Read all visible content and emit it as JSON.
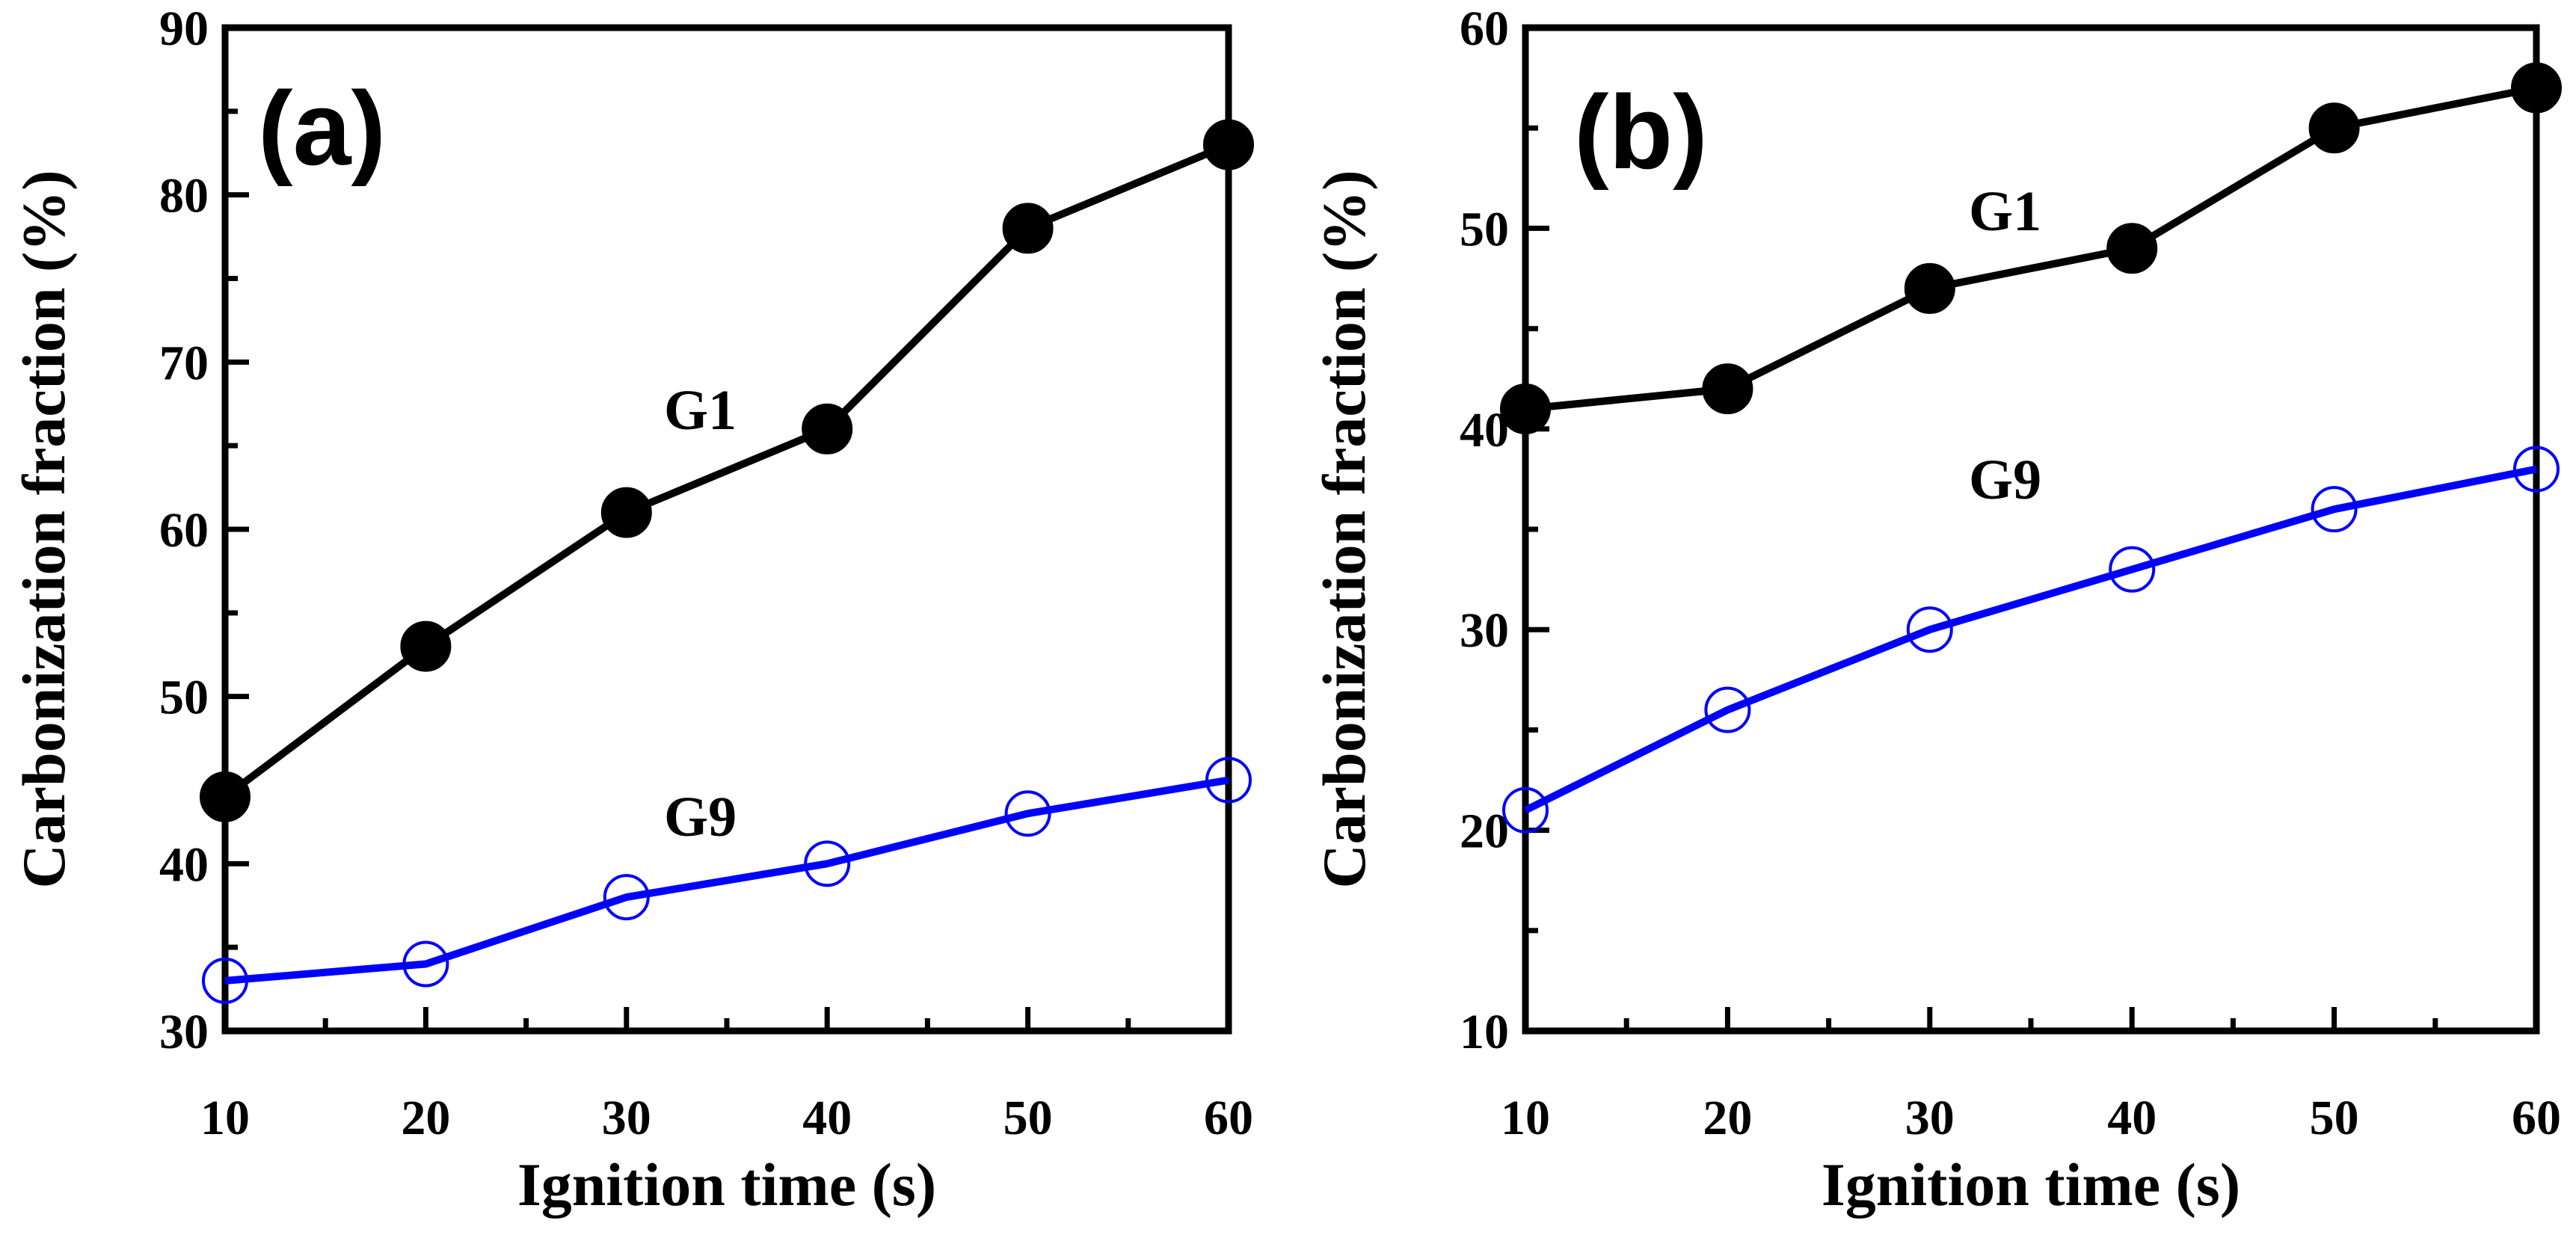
{
  "chart_data": [
    {
      "type": "line",
      "panel_label": "(a)",
      "xlabel": "Ignition time (s)",
      "ylabel": "Carbonization fraction (%)",
      "xlim": [
        10,
        60
      ],
      "ylim": [
        30,
        90
      ],
      "x_ticks": [
        "10",
        "20",
        "30",
        "40",
        "50",
        "60"
      ],
      "y_ticks": [
        "30",
        "40",
        "50",
        "60",
        "70",
        "80",
        "90"
      ],
      "x": [
        10,
        20,
        30,
        40,
        50,
        60
      ],
      "series": [
        {
          "name": "G1",
          "values": [
            44,
            53,
            61,
            66,
            78,
            83
          ],
          "color": "#000000",
          "marker": "filled-circle"
        },
        {
          "name": "G9",
          "values": [
            33,
            34,
            38,
            40,
            43,
            45
          ],
          "color": "#0000ff",
          "marker": "open-circle"
        }
      ]
    },
    {
      "type": "line",
      "panel_label": "(b)",
      "xlabel": "Ignition time (s)",
      "ylabel": "Carbonization fraction (%)",
      "xlim": [
        10,
        60
      ],
      "ylim": [
        10,
        60
      ],
      "x_ticks": [
        "10",
        "20",
        "30",
        "40",
        "50",
        "60"
      ],
      "y_ticks": [
        "10",
        "20",
        "30",
        "40",
        "50",
        "60"
      ],
      "x": [
        10,
        20,
        30,
        40,
        50,
        60
      ],
      "series": [
        {
          "name": "G1",
          "values": [
            41,
            42,
            47,
            49,
            55,
            57
          ],
          "color": "#000000",
          "marker": "filled-circle"
        },
        {
          "name": "G9",
          "values": [
            21,
            26,
            30,
            33,
            36,
            38
          ],
          "color": "#0000ff",
          "marker": "open-circle"
        }
      ]
    }
  ]
}
